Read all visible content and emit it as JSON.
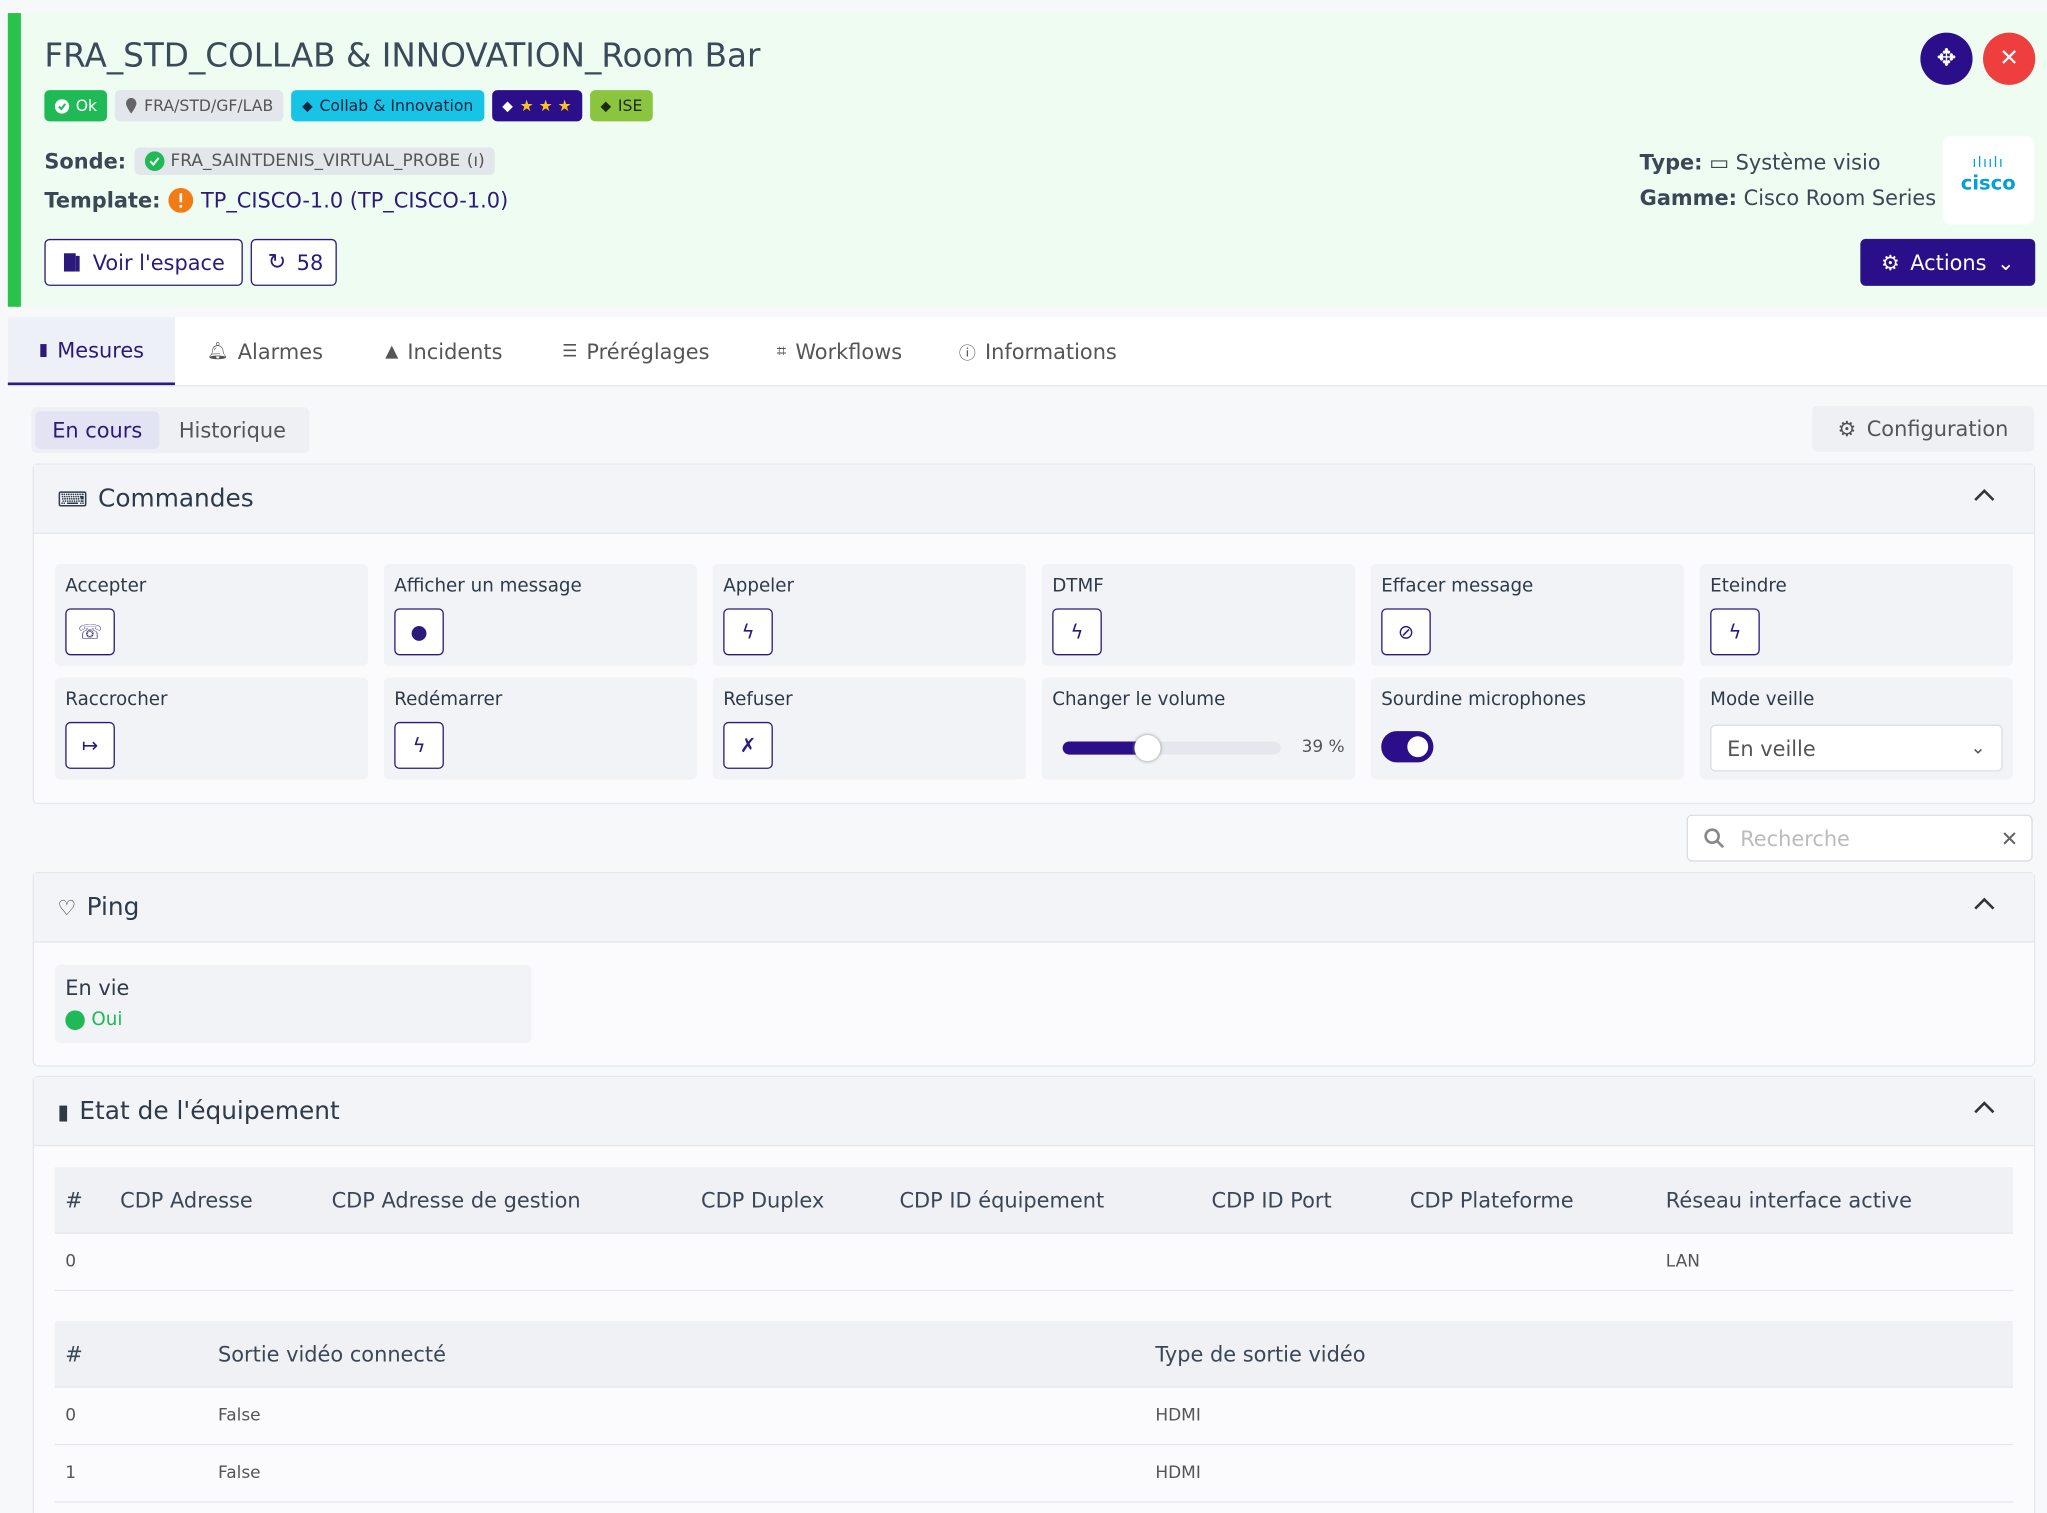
{
  "header": {
    "title": "FRA_STD_COLLAB & INNOVATION_Room Bar",
    "status": "Ok",
    "location": "FRA/STD/GF/LAB",
    "tags": [
      "Collab & Innovation",
      "ISE"
    ],
    "sonde_label": "Sonde:",
    "sonde": "FRA_SAINTDENIS_VIRTUAL_PROBE",
    "template_label": "Template:",
    "template": "TP_CISCO-1.0 (TP_CISCO-1.0)",
    "type_label": "Type:",
    "type": "Système visio",
    "gamme_label": "Gamme:",
    "gamme": "Cisco Room Series",
    "logo": "cisco",
    "view_button": "Voir l'espace",
    "refresh_button": "58",
    "actions_button": "Actions"
  },
  "tabs": [
    "Mesures",
    "Alarmes",
    "Incidents",
    "Préréglages",
    "Workflows",
    "Informations"
  ],
  "subtabs": [
    "En cours",
    "Historique"
  ],
  "config_button": "Configuration",
  "commandes": {
    "title": "Commandes",
    "buttons": [
      "Accepter",
      "Afficher un message",
      "Appeler",
      "DTMF",
      "Effacer message",
      "Eteindre",
      "Raccrocher",
      "Redémarrer",
      "Refuser"
    ],
    "volume": {
      "label": "Changer le volume",
      "value": 39,
      "value_label": "39 %"
    },
    "mute": "Sourdine microphones",
    "sleep": {
      "label": "Mode veille",
      "value": "En veille"
    }
  },
  "search_placeholder": "Recherche",
  "ping": {
    "title": "Ping",
    "label": "En vie",
    "value": "Oui"
  },
  "etat": {
    "title": "Etat de l'équipement",
    "table1": {
      "headers": [
        "#",
        "CDP Adresse",
        "CDP Adresse de gestion",
        "CDP Duplex",
        "CDP ID équipement",
        "CDP ID Port",
        "CDP Plateforme",
        "Réseau interface active"
      ],
      "rows": [
        [
          "0",
          "",
          "",
          "",
          "",
          "",
          "",
          "LAN"
        ]
      ]
    },
    "table2": {
      "headers": [
        "#",
        "Sortie vidéo connecté",
        "Type de sortie vidéo"
      ],
      "rows": [
        [
          "0",
          "False",
          "HDMI"
        ],
        [
          "1",
          "False",
          "HDMI"
        ]
      ]
    }
  }
}
